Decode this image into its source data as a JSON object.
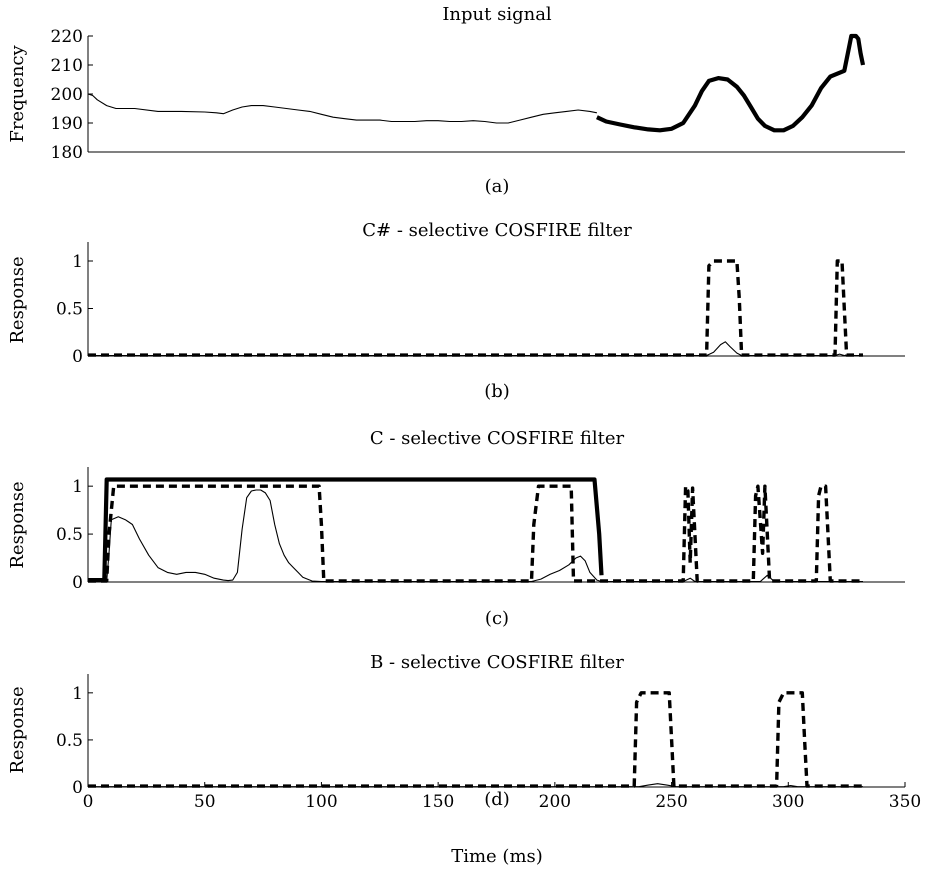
{
  "chart_data": [
    {
      "type": "line",
      "title": "Input signal",
      "caption": "(a)",
      "ylabel": "Frequency",
      "xlim": [
        0,
        350
      ],
      "ylim": [
        180,
        220
      ],
      "yticks": [
        180,
        190,
        200,
        210,
        220
      ],
      "series": [
        {
          "style": "thin",
          "x": [
            0,
            2,
            4,
            8,
            12,
            20,
            30,
            40,
            50,
            55,
            58,
            62,
            66,
            70,
            75,
            80,
            85,
            90,
            95,
            100,
            105,
            110,
            115,
            120,
            125,
            130,
            135,
            140,
            145,
            150,
            155,
            160,
            165,
            170,
            175,
            180,
            185,
            190,
            195,
            200,
            205,
            210,
            215,
            218
          ],
          "y": [
            200,
            199.5,
            198,
            196,
            195,
            195,
            194,
            194,
            193.8,
            193.5,
            193.2,
            194.5,
            195.5,
            196,
            196,
            195.5,
            195,
            194.5,
            194,
            193,
            192,
            191.5,
            191,
            191,
            191,
            190.5,
            190.5,
            190.5,
            190.8,
            190.8,
            190.5,
            190.5,
            190.8,
            190.5,
            190,
            190,
            191,
            192,
            193,
            193.5,
            194,
            194.5,
            194,
            193.5
          ]
        },
        {
          "style": "thick",
          "x": [
            218,
            222,
            228,
            234,
            240,
            245,
            250,
            255,
            260,
            263,
            266,
            270,
            274,
            278,
            281,
            284,
            287,
            290,
            294,
            298,
            302,
            306,
            310,
            314,
            318,
            321,
            324,
            326,
            327,
            328,
            329,
            330,
            331,
            332
          ],
          "y": [
            192,
            190.5,
            189.5,
            188.5,
            187.8,
            187.5,
            188,
            190,
            196,
            201,
            204.5,
            205.5,
            205,
            202.5,
            199.5,
            195.5,
            191.5,
            189,
            187.5,
            187.5,
            189,
            192,
            196,
            202,
            206,
            207,
            208,
            216,
            220,
            220,
            220,
            219,
            214,
            210
          ]
        }
      ]
    },
    {
      "type": "line",
      "title": "C# - selective COSFIRE filter",
      "caption": "(b)",
      "ylabel": "Response",
      "xlim": [
        0,
        350
      ],
      "ylim": [
        0,
        1.2
      ],
      "yticks": [
        0,
        0.5,
        1
      ],
      "yticklabels": [
        "0",
        "0.5",
        "1"
      ],
      "series": [
        {
          "style": "dashed",
          "x": [
            0,
            265,
            266,
            268,
            278,
            279,
            280,
            320,
            321,
            323,
            324,
            325,
            332
          ],
          "y": [
            0.01,
            0.01,
            0.95,
            1.0,
            1.0,
            0.6,
            0.01,
            0.01,
            1.0,
            1.0,
            0.5,
            0.01,
            0.01
          ]
        },
        {
          "style": "thin",
          "x": [
            0,
            265,
            268,
            271,
            273,
            275,
            278,
            280,
            320,
            322,
            324,
            332
          ],
          "y": [
            0.005,
            0.005,
            0.04,
            0.12,
            0.15,
            0.1,
            0.03,
            0.005,
            0.005,
            0.02,
            0.005,
            0.005
          ]
        }
      ]
    },
    {
      "type": "line",
      "title": "C - selective COSFIRE filter",
      "caption": "(c)",
      "ylabel": "Response",
      "xlim": [
        0,
        350
      ],
      "ylim": [
        0,
        1.2
      ],
      "yticks": [
        0,
        0.5,
        1
      ],
      "yticklabels": [
        "0",
        "0.5",
        "1"
      ],
      "series": [
        {
          "style": "thick",
          "x": [
            0,
            7,
            8,
            217,
            219,
            220
          ],
          "y": [
            0.02,
            0.02,
            1.07,
            1.07,
            0.5,
            0.07
          ]
        },
        {
          "style": "dashed",
          "x": [
            0,
            8,
            9,
            11,
            99,
            100,
            101,
            190,
            191,
            193,
            207,
            208,
            220,
            255,
            256,
            257,
            258,
            259,
            260,
            261,
            285,
            286,
            287,
            289,
            290,
            291,
            292,
            312,
            313,
            314,
            316,
            317,
            318,
            332
          ],
          "y": [
            0.01,
            0.01,
            0.5,
            1.0,
            1.0,
            0.6,
            0.01,
            0.01,
            0.6,
            1.0,
            1.0,
            0.01,
            0.01,
            0.01,
            1.0,
            0.95,
            0.2,
            0.98,
            0.5,
            0.01,
            0.01,
            0.9,
            1.0,
            0.3,
            1.0,
            0.5,
            0.01,
            0.01,
            0.9,
            1.0,
            1.0,
            0.5,
            0.01,
            0.01
          ]
        },
        {
          "style": "thin",
          "x": [
            0,
            8,
            9,
            10,
            13,
            16,
            19,
            22,
            26,
            30,
            34,
            38,
            42,
            46,
            50,
            54,
            58,
            60,
            62,
            64,
            66,
            68,
            70,
            72,
            74,
            76,
            78,
            80,
            82,
            84,
            86,
            88,
            90,
            92,
            94,
            96,
            100,
            190,
            194,
            198,
            202,
            206,
            209,
            211,
            213,
            215,
            218,
            220,
            255,
            258,
            260,
            288,
            291,
            294,
            332
          ],
          "y": [
            0.01,
            0.01,
            0.3,
            0.65,
            0.68,
            0.65,
            0.6,
            0.45,
            0.28,
            0.15,
            0.1,
            0.08,
            0.1,
            0.1,
            0.08,
            0.04,
            0.02,
            0.015,
            0.02,
            0.1,
            0.55,
            0.88,
            0.95,
            0.96,
            0.96,
            0.93,
            0.85,
            0.6,
            0.4,
            0.28,
            0.2,
            0.15,
            0.1,
            0.05,
            0.03,
            0.01,
            0.005,
            0.005,
            0.03,
            0.08,
            0.12,
            0.18,
            0.25,
            0.27,
            0.22,
            0.1,
            0.02,
            0.005,
            0.005,
            0.04,
            0.005,
            0.005,
            0.07,
            0.005,
            0.005
          ]
        }
      ]
    },
    {
      "type": "line",
      "title": "B - selective COSFIRE filter",
      "caption": "(d)",
      "ylabel": "Response",
      "xlabel": "Time (ms)",
      "xlim": [
        0,
        350
      ],
      "ylim": [
        0,
        1.2
      ],
      "xticks": [
        0,
        50,
        100,
        150,
        200,
        250,
        300,
        350
      ],
      "yticks": [
        0,
        0.5,
        1
      ],
      "yticklabels": [
        "0",
        "0.5",
        "1"
      ],
      "series": [
        {
          "style": "dashed",
          "x": [
            0,
            234,
            235,
            237,
            249,
            250,
            251,
            295,
            296,
            298,
            306,
            307,
            308,
            332
          ],
          "y": [
            0.01,
            0.01,
            0.9,
            1.0,
            1.0,
            0.5,
            0.01,
            0.01,
            0.9,
            1.0,
            1.0,
            0.5,
            0.01,
            0.01
          ]
        },
        {
          "style": "thin",
          "x": [
            0,
            236,
            240,
            244,
            248,
            252,
            298,
            301,
            304,
            332
          ],
          "y": [
            0.003,
            0.003,
            0.02,
            0.035,
            0.02,
            0.003,
            0.003,
            0.015,
            0.003,
            0.003
          ]
        }
      ]
    }
  ]
}
